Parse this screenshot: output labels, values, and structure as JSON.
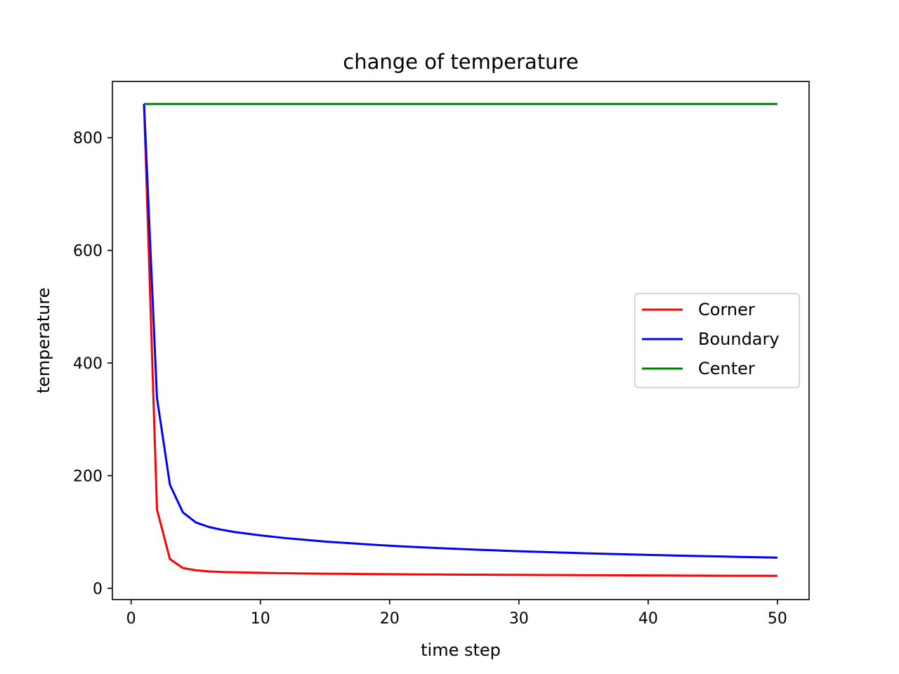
{
  "chart_data": {
    "type": "line",
    "title": "change of temperature",
    "xlabel": "time step",
    "ylabel": "temperature",
    "xlim": [
      -1.45,
      52.45
    ],
    "ylim": [
      -20,
      900
    ],
    "xticks": [
      0,
      10,
      20,
      30,
      40,
      50
    ],
    "yticks": [
      0,
      200,
      400,
      600,
      800
    ],
    "grid": false,
    "legend_position": "center-right",
    "series": [
      {
        "name": "Corner",
        "color": "#ff0000",
        "x": [
          1,
          2,
          3,
          4,
          5,
          6,
          7,
          8,
          9,
          10,
          11,
          12,
          13,
          14,
          15,
          16,
          17,
          18,
          19,
          20,
          21,
          22,
          23,
          24,
          25,
          26,
          27,
          28,
          29,
          30,
          31,
          32,
          33,
          34,
          35,
          36,
          37,
          38,
          39,
          40,
          41,
          42,
          43,
          44,
          45,
          46,
          47,
          48,
          49,
          50
        ],
        "y": [
          860,
          140,
          52,
          36,
          32,
          30,
          29,
          28.5,
          28,
          27.5,
          27,
          26.8,
          26.5,
          26.2,
          26,
          25.8,
          25.6,
          25.4,
          25.2,
          25,
          24.9,
          24.7,
          24.6,
          24.5,
          24.4,
          24.3,
          24.2,
          24.1,
          24,
          23.9,
          23.8,
          23.7,
          23.6,
          23.5,
          23.4,
          23.3,
          23.2,
          23.1,
          23,
          22.9,
          22.8,
          22.7,
          22.6,
          22.5,
          22.4,
          22.3,
          22.3,
          22.2,
          22.2,
          22.1
        ]
      },
      {
        "name": "Boundary",
        "color": "#0000ff",
        "x": [
          1,
          2,
          3,
          4,
          5,
          6,
          7,
          8,
          9,
          10,
          11,
          12,
          13,
          14,
          15,
          16,
          17,
          18,
          19,
          20,
          21,
          22,
          23,
          24,
          25,
          26,
          27,
          28,
          29,
          30,
          31,
          32,
          33,
          34,
          35,
          36,
          37,
          38,
          39,
          40,
          41,
          42,
          43,
          44,
          45,
          46,
          47,
          48,
          49,
          50
        ],
        "y": [
          860,
          338,
          184,
          135,
          117,
          109,
          104,
          100,
          97,
          94,
          91.5,
          89,
          87,
          85,
          83,
          81.5,
          80,
          78.5,
          77,
          75.7,
          74.5,
          73.3,
          72.2,
          71.2,
          70.2,
          69.3,
          68.4,
          67.5,
          66.7,
          65.9,
          65.1,
          64.4,
          63.7,
          63,
          62.3,
          61.7,
          61.1,
          60.5,
          59.9,
          59.3,
          58.8,
          58.3,
          57.8,
          57.3,
          56.8,
          56.3,
          55.8,
          55.4,
          54.9,
          54.5
        ]
      },
      {
        "name": "Center",
        "color": "#008000",
        "x": [
          1,
          50
        ],
        "y": [
          860,
          860
        ]
      }
    ]
  }
}
